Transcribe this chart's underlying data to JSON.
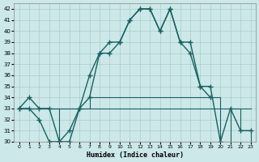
{
  "xlabel": "Humidex (Indice chaleur)",
  "x": [
    0,
    1,
    2,
    3,
    4,
    5,
    6,
    7,
    8,
    9,
    10,
    11,
    12,
    13,
    14,
    15,
    16,
    17,
    18,
    19,
    20,
    21,
    22,
    23
  ],
  "line_main": [
    33,
    34,
    33,
    33,
    30,
    31,
    33,
    36,
    38,
    39,
    39,
    41,
    42,
    42,
    40,
    42,
    39,
    39,
    35,
    34,
    null,
    null,
    null,
    null
  ],
  "line_main2": [
    33,
    33,
    32,
    30,
    30,
    30,
    33,
    34,
    38,
    38,
    39,
    41,
    42,
    42,
    40,
    42,
    39,
    38,
    35,
    35,
    30,
    33,
    31,
    31
  ],
  "line_step1": [
    33,
    33,
    33,
    33,
    30,
    30,
    30,
    30,
    30,
    30,
    30,
    30,
    30,
    30,
    30,
    30,
    30,
    30,
    30,
    30,
    30,
    30,
    30,
    30
  ],
  "line_step2": [
    33,
    33,
    33,
    33,
    33,
    33,
    33,
    34,
    34,
    34,
    34,
    34,
    34,
    34,
    34,
    34,
    34,
    34,
    34,
    34,
    30,
    33,
    31,
    30
  ],
  "line_step3": [
    33,
    33,
    33,
    33,
    33,
    33,
    33,
    33,
    33,
    33,
    33,
    33,
    33,
    33,
    33,
    33,
    33,
    33,
    33,
    33,
    33,
    33,
    33,
    33
  ],
  "bg_color": "#cce8e8",
  "grid_color": "#aacccc",
  "line_color": "#1a6060",
  "ylim": [
    30,
    42
  ],
  "xlim": [
    -0.5,
    23.5
  ],
  "yticks": [
    30,
    31,
    32,
    33,
    34,
    35,
    36,
    37,
    38,
    39,
    40,
    41,
    42
  ]
}
